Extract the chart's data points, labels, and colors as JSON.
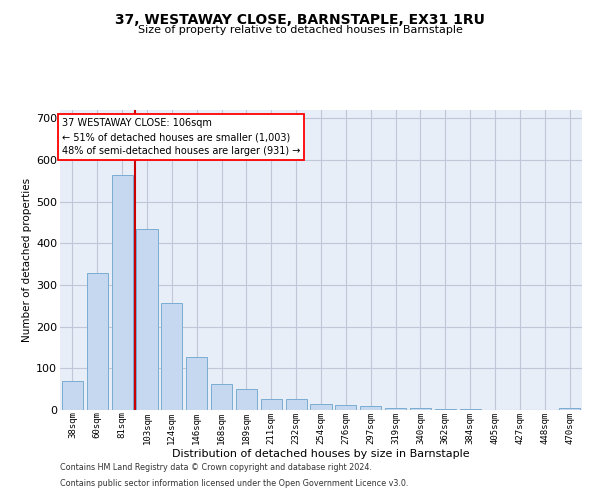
{
  "title": "37, WESTAWAY CLOSE, BARNSTAPLE, EX31 1RU",
  "subtitle": "Size of property relative to detached houses in Barnstaple",
  "xlabel": "Distribution of detached houses by size in Barnstaple",
  "ylabel": "Number of detached properties",
  "footnote1": "Contains HM Land Registry data © Crown copyright and database right 2024.",
  "footnote2": "Contains public sector information licensed under the Open Government Licence v3.0.",
  "annotation_title": "37 WESTAWAY CLOSE: 106sqm",
  "annotation_line1": "← 51% of detached houses are smaller (1,003)",
  "annotation_line2": "48% of semi-detached houses are larger (931) →",
  "bar_color": "#c5d8f0",
  "bar_edge_color": "#7aadd4",
  "vline_color": "#cc0000",
  "grid_color": "#c0c8d8",
  "bg_color": "#e8eef8",
  "categories": [
    "38sqm",
    "60sqm",
    "81sqm",
    "103sqm",
    "124sqm",
    "146sqm",
    "168sqm",
    "189sqm",
    "211sqm",
    "232sqm",
    "254sqm",
    "276sqm",
    "297sqm",
    "319sqm",
    "340sqm",
    "362sqm",
    "384sqm",
    "405sqm",
    "427sqm",
    "448sqm",
    "470sqm"
  ],
  "values": [
    70,
    328,
    563,
    435,
    256,
    128,
    62,
    50,
    27,
    27,
    15,
    13,
    10,
    4,
    4,
    3,
    2,
    1,
    0,
    0,
    5
  ],
  "vline_index": 2.5,
  "ylim": [
    0,
    720
  ],
  "yticks": [
    0,
    100,
    200,
    300,
    400,
    500,
    600,
    700
  ]
}
